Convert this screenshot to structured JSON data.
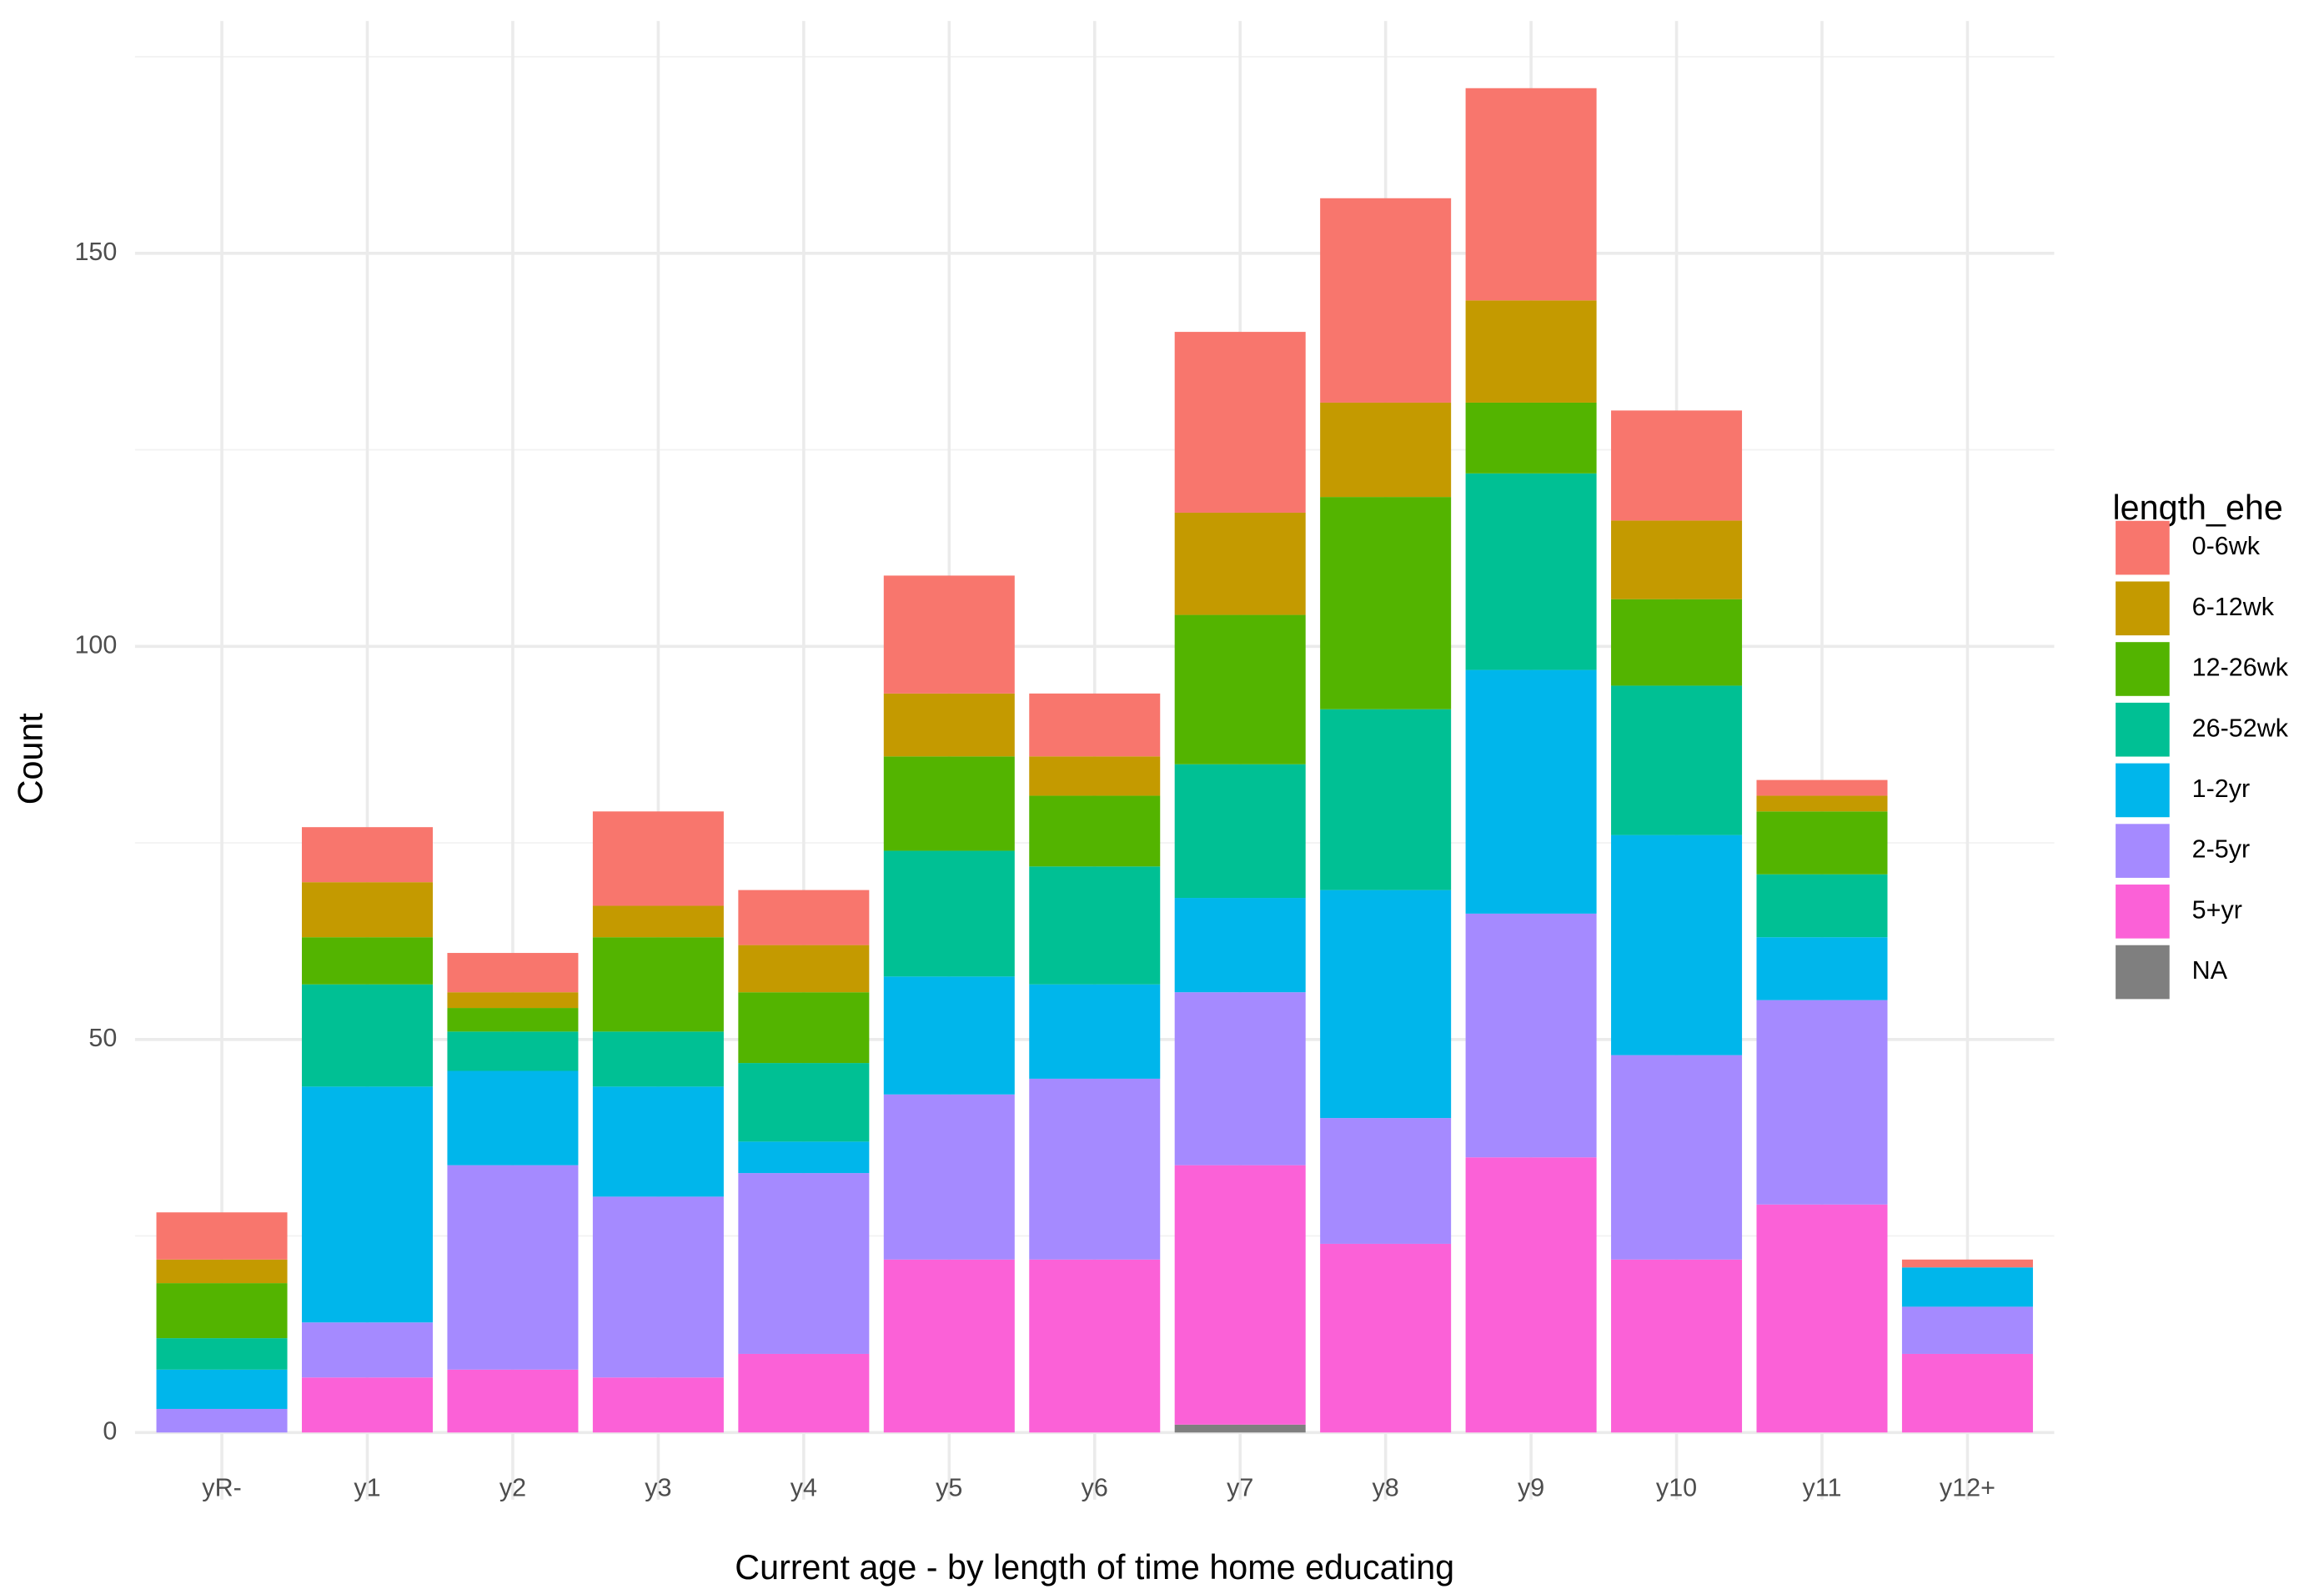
{
  "chart_data": {
    "type": "stacked_bar",
    "x_label": "Current age - by length of time home educating",
    "y_label": "Count",
    "legend_title": "length_ehe",
    "legend_position": "right",
    "grid": true,
    "minor_grid": [
      25,
      75,
      125,
      175
    ],
    "categories": [
      "yR-",
      "y1",
      "y2",
      "y3",
      "y4",
      "y5",
      "y6",
      "y7",
      "y8",
      "y9",
      "y10",
      "y11",
      "y12+"
    ],
    "ylim": [
      -8.55,
      179.55
    ],
    "yticks": [
      0,
      50,
      100,
      150
    ],
    "series": [
      {
        "name": "0-6wk",
        "color": "#F8766D",
        "values": [
          6,
          7,
          5,
          12,
          7,
          15,
          8,
          23,
          26,
          27,
          14,
          2,
          1
        ]
      },
      {
        "name": "6-12wk",
        "color": "#C49A00",
        "values": [
          3,
          7,
          2,
          4,
          6,
          8,
          5,
          13,
          12,
          13,
          10,
          2,
          0
        ]
      },
      {
        "name": "12-26wk",
        "color": "#53B400",
        "values": [
          7,
          6,
          3,
          12,
          9,
          12,
          9,
          19,
          27,
          9,
          11,
          8,
          0
        ]
      },
      {
        "name": "26-52wk",
        "color": "#00C094",
        "values": [
          4,
          13,
          5,
          7,
          10,
          16,
          15,
          17,
          23,
          25,
          19,
          8,
          0
        ]
      },
      {
        "name": "1-2yr",
        "color": "#00B6EB",
        "values": [
          5,
          30,
          12,
          14,
          4,
          15,
          12,
          12,
          29,
          31,
          28,
          8,
          5
        ]
      },
      {
        "name": "2-5yr",
        "color": "#A58AFF",
        "values": [
          3,
          7,
          26,
          23,
          23,
          21,
          23,
          22,
          16,
          31,
          26,
          26,
          6
        ]
      },
      {
        "name": "5+yr",
        "color": "#FB61D7",
        "values": [
          0,
          7,
          8,
          7,
          10,
          22,
          22,
          33,
          24,
          35,
          22,
          29,
          10
        ]
      },
      {
        "name": "NA",
        "color": "#7F7F7F",
        "values": [
          0,
          0,
          0,
          0,
          0,
          0,
          0,
          1,
          0,
          0,
          0,
          0,
          0
        ]
      }
    ]
  }
}
